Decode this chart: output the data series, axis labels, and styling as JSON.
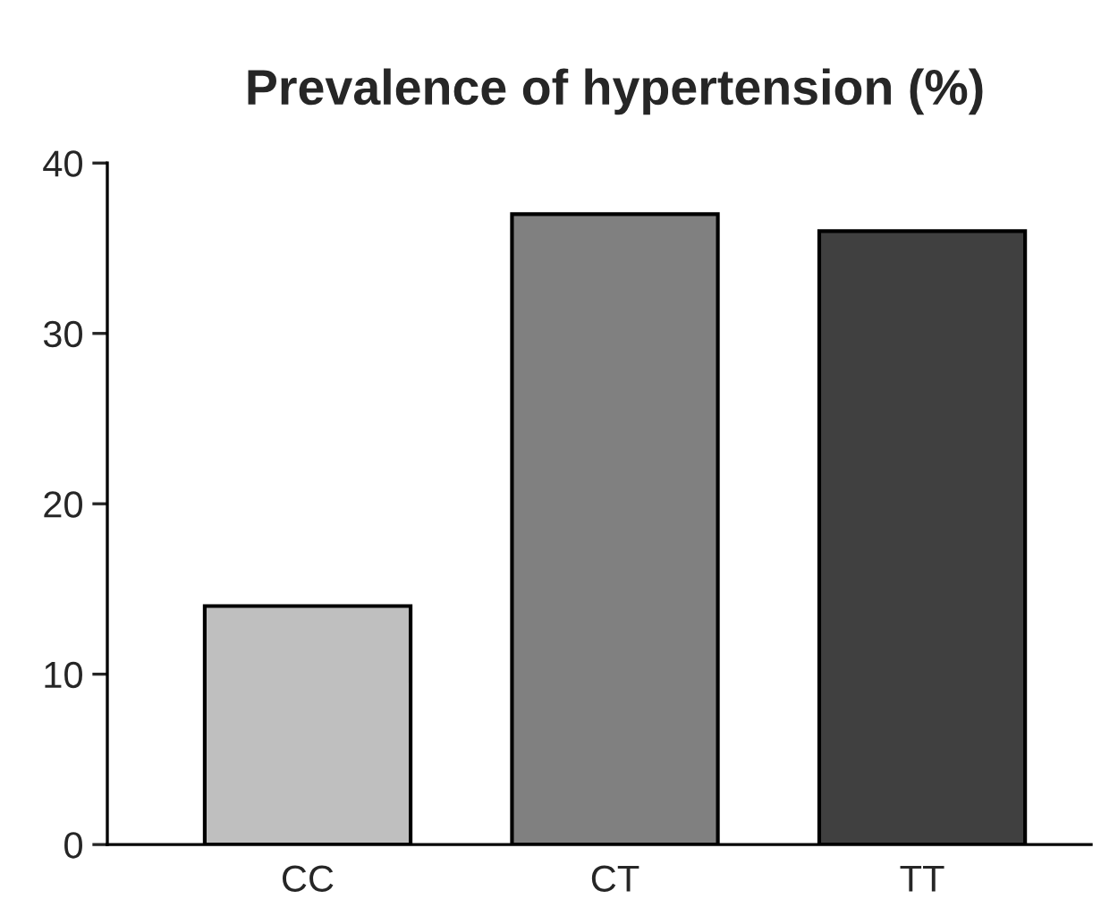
{
  "chart_data": {
    "type": "bar",
    "title": "Prevalence of hypertension (%)",
    "categories": [
      "CC",
      "CT",
      "TT"
    ],
    "values": [
      14,
      37,
      36
    ],
    "colors": [
      "#bfbfbf",
      "#808080",
      "#404040"
    ],
    "ylim": [
      0,
      40
    ],
    "yticks": [
      0,
      10,
      20,
      30,
      40
    ],
    "grid": false
  }
}
